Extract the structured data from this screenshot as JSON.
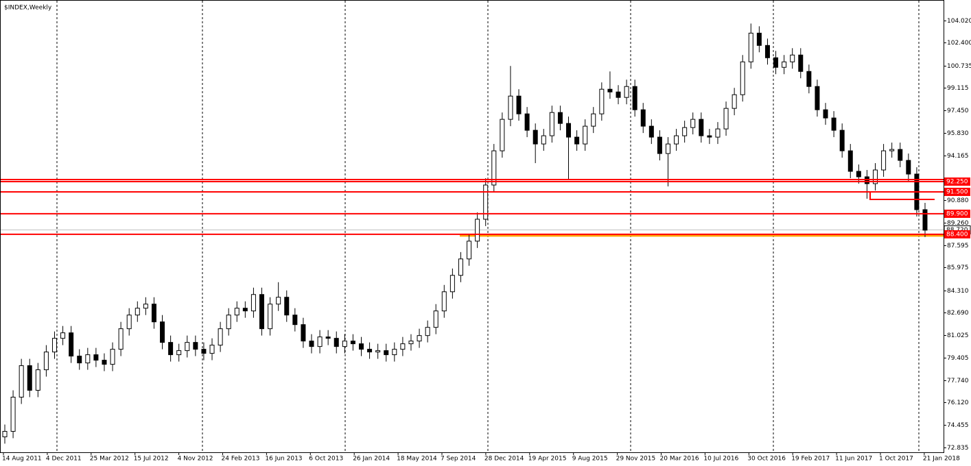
{
  "chart_data": {
    "type": "candlestick",
    "title": "$INDEX,Weekly",
    "up_color": "#ffffff",
    "down_color": "#000000",
    "wick_color": "#000000",
    "ylim": [
      72.47,
      105.52
    ],
    "yticks": [
      {
        "value": 104.02,
        "label": "104.020"
      },
      {
        "value": 102.4,
        "label": "102.400"
      },
      100.735,
      99.115,
      {
        "value": 97.45,
        "label": "97.450"
      },
      {
        "value": 95.83,
        "label": "95.830"
      },
      94.165,
      {
        "value": 90.88,
        "label": "90.880"
      },
      {
        "value": 89.26,
        "label": "89.260"
      },
      87.595,
      85.975,
      {
        "value": 84.31,
        "label": "84.310"
      },
      {
        "value": 82.69,
        "label": "82.690"
      },
      81.025,
      79.405,
      {
        "value": 77.74,
        "label": "77.740"
      },
      {
        "value": 76.12,
        "label": "76.120"
      },
      74.455,
      72.835
    ],
    "x_labels": [
      "14 Aug 2011",
      "4 Dec 2011",
      "25 Mar 2012",
      "15 Jul 2012",
      "4 Nov 2012",
      "24 Feb 2013",
      "16 Jun 2013",
      "6 Oct 2013",
      "26 Jan 2014",
      "18 May 2014",
      "7 Sep 2014",
      "28 Dec 2014",
      "19 Apr 2015",
      "9 Aug 2015",
      "29 Nov 2015",
      "20 Mar 2016",
      "10 Jul 2016",
      "30 Oct 2016",
      "19 Feb 2017",
      "11 Jun 2017",
      "1 Oct 2017",
      "21 Jan 2018"
    ],
    "current_price": {
      "value": 88.72,
      "label": "88.720",
      "color": "#c0c0c0"
    },
    "levels": [
      {
        "value": 92.25,
        "label": "92.250",
        "color": "#ff0000"
      },
      {
        "value": 92.4,
        "color": "#ff0000"
      },
      {
        "value": 91.5,
        "label": "91.500",
        "color": "#ff0000"
      },
      {
        "value": 89.9,
        "label": "89.900",
        "color": "#ff0000"
      },
      {
        "value": 88.4,
        "label": "88.400",
        "color": "#ff0000"
      }
    ],
    "range_marker": {
      "value": 90.95,
      "color": "#ff0000"
    },
    "support_line": {
      "value": 88.4,
      "color": "#ffa500"
    },
    "open": [
      73.6,
      74.0,
      76.5,
      78.8,
      77.0,
      78.5,
      79.8,
      80.8,
      81.2,
      79.5,
      79.0,
      79.6,
      79.2,
      78.9,
      80.0,
      81.5,
      82.5,
      83.0,
      83.3,
      82.0,
      80.5,
      79.6,
      79.9,
      80.5,
      80.0,
      79.7,
      80.3,
      81.5,
      82.5,
      83.0,
      82.8,
      84.0,
      81.5,
      83.3,
      83.8,
      82.5,
      81.8,
      80.6,
      80.2,
      80.9,
      80.8,
      80.2,
      80.6,
      80.4,
      80.0,
      79.8,
      79.9,
      79.6,
      80.0,
      80.4,
      80.6,
      81.0,
      81.6,
      82.8,
      84.2,
      85.4,
      86.6,
      87.9,
      89.5,
      92.0,
      94.5,
      96.8,
      98.5,
      97.2,
      96.0,
      95.0,
      95.6,
      97.3,
      96.5,
      95.5,
      95.0,
      96.3,
      97.2,
      99.0,
      98.8,
      98.4,
      99.2,
      97.5,
      96.3,
      95.5,
      94.3,
      95.0,
      95.6,
      96.2,
      96.8,
      95.6,
      95.5,
      96.1,
      97.6,
      98.6,
      101.0,
      103.1,
      102.2,
      101.3,
      100.6,
      101.0,
      101.5,
      100.3,
      99.2,
      97.5,
      96.9,
      96.0,
      94.5,
      93.0,
      92.6,
      92.1,
      93.1,
      94.5,
      94.6,
      93.8,
      92.8,
      90.2
    ],
    "high": [
      74.5,
      77.0,
      79.3,
      79.3,
      79.0,
      80.3,
      81.3,
      81.7,
      81.7,
      80.0,
      80.1,
      80.1,
      79.7,
      80.5,
      82.0,
      83.0,
      83.5,
      83.8,
      83.8,
      82.5,
      81.0,
      80.4,
      81.0,
      81.0,
      80.5,
      80.8,
      82.0,
      83.0,
      83.5,
      83.5,
      84.5,
      84.5,
      83.8,
      84.9,
      84.3,
      83.0,
      82.3,
      81.1,
      81.4,
      81.4,
      81.3,
      81.1,
      81.1,
      80.9,
      80.5,
      80.4,
      80.4,
      80.5,
      80.9,
      81.1,
      81.5,
      82.1,
      83.3,
      84.7,
      85.9,
      87.1,
      88.4,
      90.0,
      92.5,
      95.0,
      97.3,
      100.7,
      99.0,
      97.7,
      96.5,
      96.1,
      97.8,
      97.8,
      97.0,
      96.0,
      96.8,
      97.7,
      99.5,
      100.3,
      99.3,
      99.7,
      99.7,
      98.0,
      96.8,
      96.0,
      95.5,
      96.1,
      96.7,
      97.3,
      97.3,
      96.1,
      96.6,
      98.1,
      99.1,
      101.5,
      103.8,
      103.6,
      102.7,
      101.8,
      101.5,
      102.0,
      102.0,
      100.8,
      99.7,
      98.0,
      97.4,
      96.5,
      95.0,
      93.5,
      93.1,
      93.6,
      95.0,
      95.1,
      95.1,
      94.3,
      93.3,
      90.7
    ],
    "low": [
      73.1,
      73.5,
      76.0,
      76.5,
      76.5,
      78.0,
      79.3,
      80.3,
      79.0,
      78.5,
      78.5,
      78.7,
      78.4,
      78.4,
      79.5,
      81.0,
      82.0,
      82.5,
      81.5,
      80.0,
      79.1,
      79.1,
      79.4,
      79.5,
      79.2,
      79.2,
      79.8,
      81.0,
      82.0,
      82.3,
      82.3,
      81.0,
      81.0,
      82.8,
      82.0,
      81.3,
      80.1,
      79.7,
      79.7,
      80.3,
      79.7,
      79.7,
      79.9,
      79.5,
      79.3,
      79.3,
      79.1,
      79.1,
      79.5,
      79.9,
      80.1,
      80.5,
      81.1,
      82.3,
      83.7,
      84.9,
      86.1,
      87.4,
      89.0,
      91.5,
      94.0,
      96.3,
      96.7,
      95.5,
      93.6,
      94.5,
      95.1,
      96.0,
      92.4,
      94.5,
      94.5,
      95.8,
      96.7,
      98.3,
      97.9,
      97.9,
      97.0,
      95.8,
      95.0,
      93.8,
      91.9,
      94.5,
      95.1,
      95.7,
      95.1,
      95.0,
      95.0,
      95.6,
      97.1,
      98.1,
      100.5,
      101.7,
      100.8,
      100.1,
      100.1,
      100.5,
      99.8,
      98.7,
      97.0,
      96.4,
      95.5,
      94.0,
      92.5,
      92.1,
      91.0,
      91.6,
      92.6,
      94.0,
      93.3,
      92.3,
      89.7,
      88.2
    ],
    "close": [
      74.0,
      76.5,
      78.8,
      77.0,
      78.5,
      79.8,
      80.8,
      81.2,
      79.5,
      79.0,
      79.6,
      79.2,
      78.9,
      80.0,
      81.5,
      82.5,
      83.0,
      83.3,
      82.0,
      80.5,
      79.6,
      79.9,
      80.5,
      80.0,
      79.7,
      80.3,
      81.5,
      82.5,
      83.0,
      82.8,
      84.0,
      81.5,
      83.3,
      83.8,
      82.5,
      81.8,
      80.6,
      80.2,
      80.9,
      80.8,
      80.2,
      80.6,
      80.4,
      80.0,
      79.8,
      79.9,
      79.6,
      80.0,
      80.4,
      80.6,
      81.0,
      81.6,
      82.8,
      84.2,
      85.4,
      86.6,
      87.9,
      89.5,
      92.0,
      94.5,
      96.8,
      98.5,
      97.2,
      96.0,
      95.0,
      95.6,
      97.3,
      96.5,
      95.5,
      95.0,
      96.3,
      97.2,
      99.0,
      98.8,
      98.4,
      99.2,
      97.5,
      96.3,
      95.5,
      94.3,
      95.0,
      95.6,
      96.2,
      96.8,
      95.6,
      95.5,
      96.1,
      97.6,
      98.6,
      101.0,
      103.1,
      102.2,
      101.3,
      100.6,
      101.0,
      101.5,
      100.3,
      99.2,
      97.5,
      96.9,
      96.0,
      94.5,
      93.0,
      92.6,
      92.1,
      93.1,
      94.5,
      94.6,
      93.8,
      92.8,
      90.2,
      88.7
    ]
  }
}
